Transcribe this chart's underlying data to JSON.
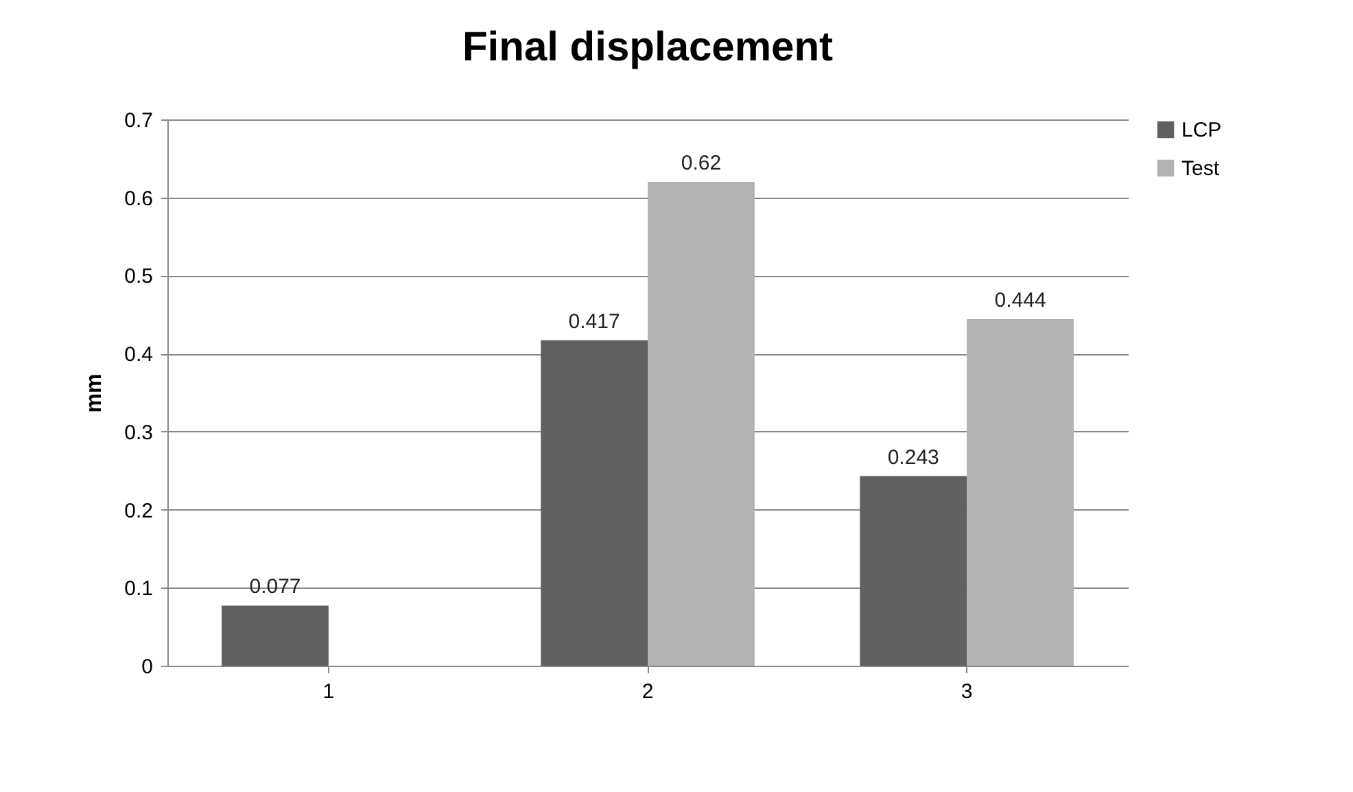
{
  "chart_data": {
    "type": "bar",
    "title": "Final displacement",
    "ylabel": "mm",
    "categories": [
      "1",
      "2",
      "3"
    ],
    "series": [
      {
        "name": "LCP",
        "color": "#606060",
        "values": [
          0.077,
          0.417,
          0.243
        ]
      },
      {
        "name": "Test",
        "color": "#b2b2b2",
        "values": [
          null,
          0.62,
          0.444
        ]
      }
    ],
    "ylim": [
      0,
      0.7
    ],
    "yticks": [
      0,
      0.1,
      0.2,
      0.3,
      0.4,
      0.5,
      0.6,
      0.7
    ],
    "grid": "y",
    "legend": "right",
    "data_labels": true
  }
}
